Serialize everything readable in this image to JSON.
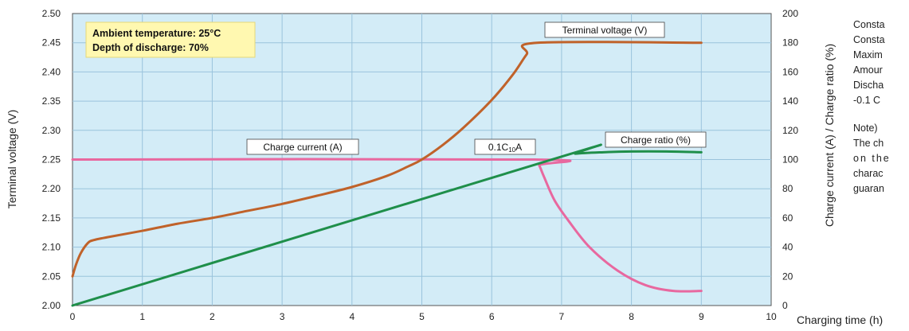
{
  "chart_data": {
    "type": "line",
    "x": {
      "label": "Charging time (h)",
      "ticks": [
        "0",
        "1",
        "2",
        "3",
        "4",
        "5",
        "6",
        "7",
        "8",
        "9",
        "10"
      ],
      "range": [
        0,
        10
      ]
    },
    "y_left": {
      "label": "Terminal voltage (V)",
      "ticks": [
        "2.00",
        "2.05",
        "2.10",
        "2.15",
        "2.20",
        "2.25",
        "2.30",
        "2.35",
        "2.40",
        "2.45",
        "2.50"
      ],
      "range": [
        2.0,
        2.5
      ]
    },
    "y_right": {
      "label": "Charge current (A) / Charge ratio (%)",
      "ticks": [
        "0",
        "20",
        "40",
        "60",
        "80",
        "100",
        "120",
        "140",
        "160",
        "180",
        "200"
      ],
      "range": [
        0,
        200
      ]
    },
    "grid": true,
    "info_box": {
      "line1": "Ambient temperature: 25°C",
      "line2": "Depth of discharge: 70%"
    },
    "series": [
      {
        "name": "Terminal voltage (V)",
        "axis": "left",
        "color": "#c0622a",
        "points": [
          [
            0,
            2.05
          ],
          [
            0.05,
            2.07
          ],
          [
            0.12,
            2.09
          ],
          [
            0.22,
            2.107
          ],
          [
            0.3,
            2.112
          ],
          [
            0.5,
            2.117
          ],
          [
            1,
            2.128
          ],
          [
            1.5,
            2.14
          ],
          [
            2,
            2.15
          ],
          [
            2.5,
            2.162
          ],
          [
            3,
            2.174
          ],
          [
            3.5,
            2.188
          ],
          [
            4,
            2.203
          ],
          [
            4.5,
            2.222
          ],
          [
            4.8,
            2.238
          ],
          [
            5,
            2.25
          ],
          [
            5.3,
            2.275
          ],
          [
            5.6,
            2.305
          ],
          [
            6,
            2.352
          ],
          [
            6.3,
            2.395
          ],
          [
            6.5,
            2.43
          ],
          [
            6.65,
            2.45
          ],
          [
            9,
            2.45
          ]
        ]
      },
      {
        "name": "Charge current (A)",
        "axis": "right",
        "color": "#e8689f",
        "annotation": "0.1C10A",
        "points": [
          [
            0,
            100
          ],
          [
            6.62,
            100
          ],
          [
            6.68,
            96
          ],
          [
            6.75,
            88
          ],
          [
            6.9,
            72
          ],
          [
            7.1,
            58
          ],
          [
            7.4,
            40
          ],
          [
            7.8,
            24
          ],
          [
            8.2,
            14
          ],
          [
            8.6,
            10
          ],
          [
            9,
            10
          ]
        ]
      },
      {
        "name": "Charge ratio (%)",
        "axis": "right",
        "color": "#1f8f4a",
        "points": [
          [
            0,
            0
          ],
          [
            7,
            102
          ],
          [
            7.2,
            104
          ],
          [
            7.6,
            105
          ],
          [
            8,
            105.5
          ],
          [
            8.5,
            105.5
          ],
          [
            9,
            105
          ]
        ]
      }
    ]
  },
  "notes": [
    "Consta",
    "Consta",
    "Maxim",
    "Amour",
    "Discha",
    "-0.1 C",
    "",
    "Note)",
    "The ch",
    "on the",
    "charac",
    "guaran"
  ]
}
